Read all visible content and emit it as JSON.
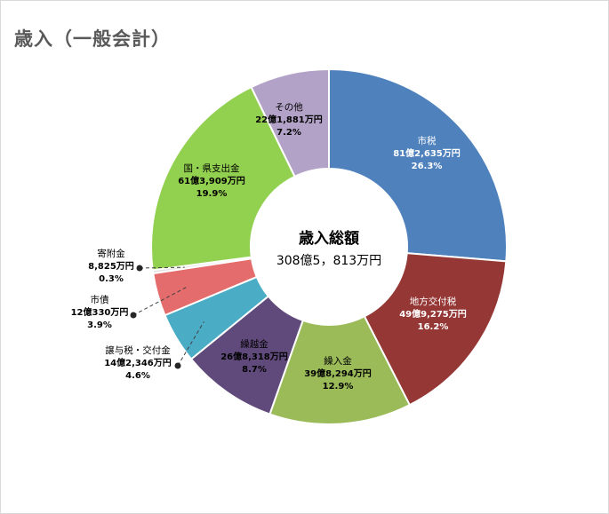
{
  "title": "歳入（一般会計）",
  "chart_data": {
    "type": "pie",
    "subtype": "donut",
    "title": "歳入（一般会計）",
    "center_label": "歳入総額",
    "center_value": "308億5，813万円",
    "slices": [
      {
        "name": "市税",
        "amount": "81億2,635万円",
        "percent": "26.3%",
        "value": 26.3,
        "color": "#4f81bd",
        "text_color": "#ffffff"
      },
      {
        "name": "地方交付税",
        "amount": "49億9,275万円",
        "percent": "16.2%",
        "value": 16.2,
        "color": "#953735",
        "text_color": "#ffffff"
      },
      {
        "name": "繰入金",
        "amount": "39億8,294万円",
        "percent": "12.9%",
        "value": 12.9,
        "color": "#9bbb59",
        "text_color": "#000000"
      },
      {
        "name": "繰越金",
        "amount": "26億8,318万円",
        "percent": "8.7%",
        "value": 8.7,
        "color": "#604a7b",
        "text_color": "#000000"
      },
      {
        "name": "譲与税・交付金",
        "amount": "14億2,346万円",
        "percent": "4.6%",
        "value": 4.6,
        "color": "#4bacc6",
        "text_color": "#000000"
      },
      {
        "name": "市債",
        "amount": "12億330万円",
        "percent": "3.9%",
        "value": 3.9,
        "color": "#e46c6c",
        "text_color": "#000000"
      },
      {
        "name": "寄附金",
        "amount": "8,825万円",
        "percent": "0.3%",
        "value": 0.3,
        "color": "#e4e4e4",
        "text_color": "#000000"
      },
      {
        "name": "国・県支出金",
        "amount": "61億3,909万円",
        "percent": "19.9%",
        "value": 19.9,
        "color": "#92d050",
        "text_color": "#000000"
      },
      {
        "name": "その他",
        "amount": "22億1,881万円",
        "percent": "7.2%",
        "value": 7.2,
        "color": "#b3a2c7",
        "text_color": "#000000"
      }
    ]
  }
}
